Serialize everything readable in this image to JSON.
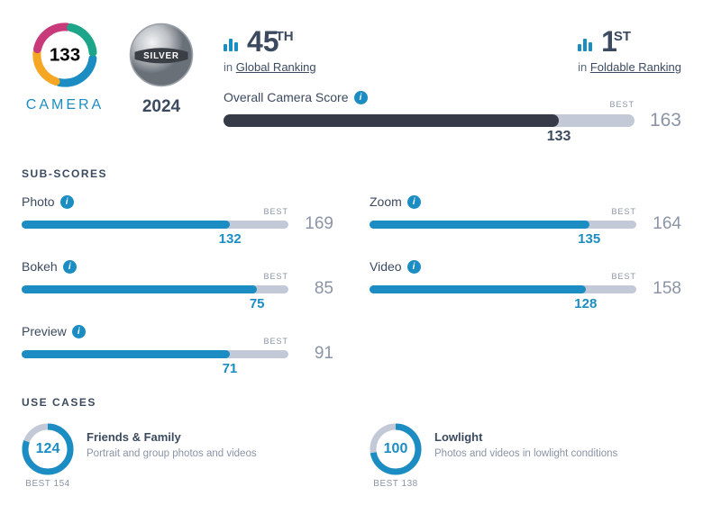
{
  "header": {
    "score": 133,
    "score_label": "CAMERA",
    "award_label": "SILVER",
    "year": "2024",
    "ring_colors": [
      "#1c8dc3",
      "#f5a623",
      "#c93a7b",
      "#1da58a"
    ],
    "silver_colors": {
      "light": "#e8e9ea",
      "dark": "#7d838a",
      "mid": "#b8bcc1"
    }
  },
  "rankings": [
    {
      "num": "45",
      "ord": "TH",
      "prefix": "in ",
      "link": "Global Ranking"
    },
    {
      "num": "1",
      "ord": "ST",
      "prefix": "in ",
      "link": "Foldable Ranking"
    }
  ],
  "overall": {
    "label": "Overall Camera Score",
    "score": 133,
    "best": 163,
    "track_color": "#c3c9d6",
    "fill_color": "#363b47"
  },
  "subscores_title": "SUB-SCORES",
  "subscores": [
    {
      "label": "Photo",
      "score": 132,
      "best": 169
    },
    {
      "label": "Zoom",
      "score": 135,
      "best": 164
    },
    {
      "label": "Bokeh",
      "score": 75,
      "best": 85
    },
    {
      "label": "Video",
      "score": 128,
      "best": 158
    },
    {
      "label": "Preview",
      "score": 71,
      "best": 91
    }
  ],
  "subscore_style": {
    "fill_color": "#1c8dc3",
    "track_color": "#c3c9d6",
    "score_color": "#1c8dc3"
  },
  "usecases_title": "USE CASES",
  "usecases": [
    {
      "score": 124,
      "best": 154,
      "title": "Friends & Family",
      "desc": "Portrait and group photos and videos"
    },
    {
      "score": 100,
      "best": 138,
      "title": "Lowlight",
      "desc": "Photos and videos in lowlight conditions"
    }
  ],
  "usecase_style": {
    "ring_fg": "#1c8dc3",
    "ring_bg": "#c3c9d6"
  },
  "labels": {
    "best": "BEST"
  }
}
